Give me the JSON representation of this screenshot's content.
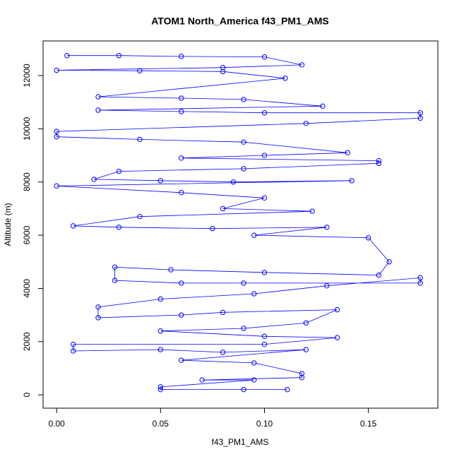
{
  "chart_data": {
    "type": "line",
    "title": "ATOM1 North_America f43_PM1_AMS",
    "x_label": "f43_PM1_AMS",
    "y_label": "Altitude (m)",
    "color": "blue",
    "marker": "circle",
    "xlim": [
      -0.0065,
      0.1834
    ],
    "ylim": [
      -500,
      13300
    ],
    "xticks": [
      {
        "value": 0,
        "label": "0.00"
      },
      {
        "value": 0.05,
        "label": "0.05"
      },
      {
        "value": 0.1,
        "label": "0.10"
      },
      {
        "value": 0.15,
        "label": "0.15"
      }
    ],
    "yticks": [
      0,
      2000,
      4000,
      6000,
      8000,
      10000,
      12000
    ],
    "x": [
      0.005,
      0.03,
      0.06,
      0.1,
      0.118,
      0.08,
      0.0,
      0.04,
      0.08,
      0.11,
      0.02,
      0.06,
      0.09,
      0.128,
      0.02,
      0.06,
      0.1,
      0.175,
      0.175,
      0.12,
      0.0,
      0.0,
      0.04,
      0.09,
      0.14,
      0.1,
      0.06,
      0.155,
      0.155,
      0.09,
      0.03,
      0.018,
      0.05,
      0.085,
      0.142,
      0.0,
      0.06,
      0.1,
      0.08,
      0.123,
      0.04,
      0.008,
      0.03,
      0.075,
      0.13,
      0.095,
      0.15,
      0.16,
      0.155,
      0.1,
      0.055,
      0.028,
      0.028,
      0.06,
      0.09,
      0.175,
      0.175,
      0.13,
      0.095,
      0.05,
      0.02,
      0.02,
      0.06,
      0.08,
      0.135,
      0.12,
      0.09,
      0.05,
      0.1,
      0.135,
      0.1,
      0.008,
      0.008,
      0.05,
      0.08,
      0.12,
      0.06,
      0.095,
      0.118,
      0.118,
      0.07,
      0.095,
      0.05,
      0.05,
      0.09,
      0.111
    ],
    "values": [
      12750,
      12750,
      12720,
      12700,
      12400,
      12300,
      12200,
      12180,
      12150,
      11900,
      11200,
      11150,
      11100,
      10850,
      10700,
      10650,
      10600,
      10600,
      10400,
      10200,
      9900,
      9700,
      9600,
      9500,
      9100,
      9000,
      8900,
      8800,
      8700,
      8500,
      8400,
      8100,
      8050,
      8000,
      8050,
      7850,
      7600,
      7400,
      7000,
      6900,
      6700,
      6350,
      6300,
      6250,
      6300,
      6000,
      5900,
      5000,
      4500,
      4600,
      4700,
      4800,
      4300,
      4200,
      4200,
      4200,
      4400,
      4100,
      3800,
      3600,
      3300,
      2900,
      3000,
      3100,
      3200,
      2700,
      2500,
      2400,
      2200,
      2150,
      1900,
      1900,
      1650,
      1700,
      1600,
      1700,
      1300,
      1200,
      800,
      650,
      560,
      560,
      300,
      200,
      200,
      200
    ]
  }
}
